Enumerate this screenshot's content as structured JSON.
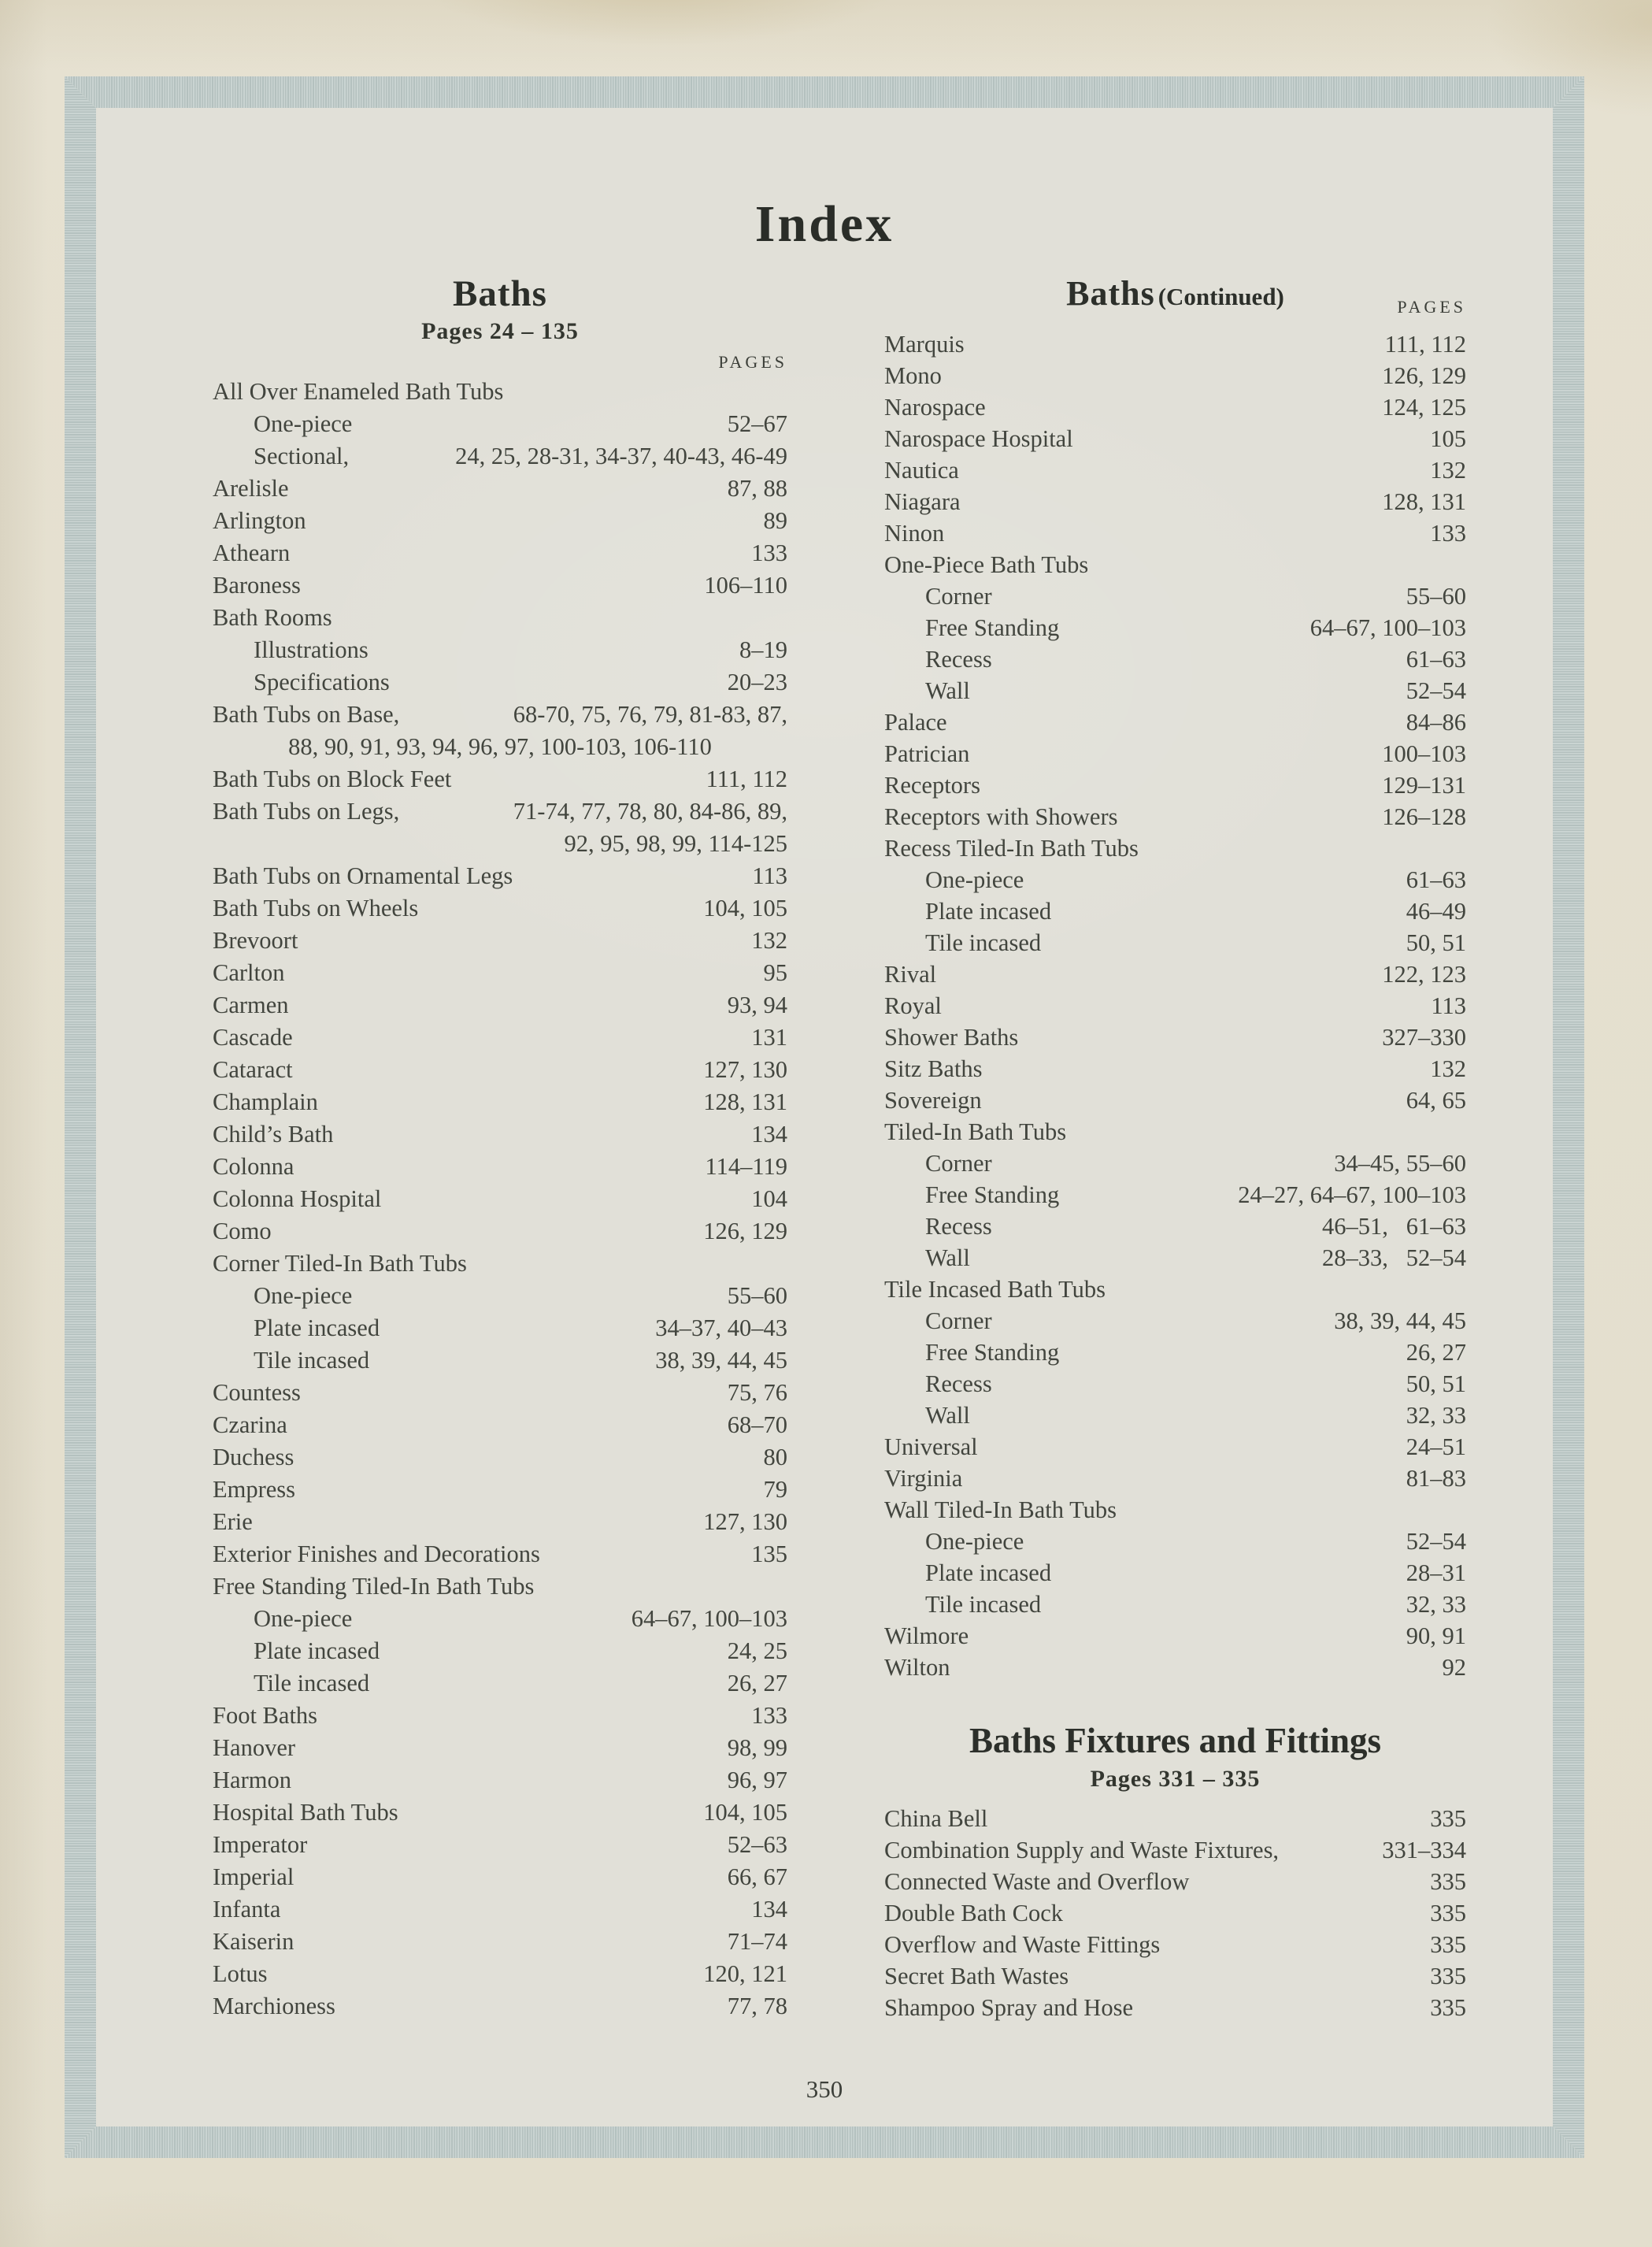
{
  "page": {
    "title": "Index",
    "page_number": "350"
  },
  "colors": {
    "paper_outer": "#e5e0d0",
    "paper_inner": "#e1e0d8",
    "border_band": "#bfcac8",
    "ink": "#3f423a"
  },
  "left_column": {
    "heading": "Baths",
    "subheading": "Pages 24 – 135",
    "pages_label": "PAGES",
    "entries": [
      {
        "t": "All Over Enameled Bath Tubs",
        "p": ""
      },
      {
        "t": "One-piece",
        "p": "52–67",
        "i": 1
      },
      {
        "t": "Sectional,",
        "p": "24, 25, 28-31, 34-37, 40-43, 46-49",
        "i": 1
      },
      {
        "t": "Arelisle",
        "p": "87, 88"
      },
      {
        "t": "Arlington",
        "p": "89"
      },
      {
        "t": "Athearn",
        "p": "133"
      },
      {
        "t": "Baroness",
        "p": "106–110"
      },
      {
        "t": "Bath Rooms",
        "p": ""
      },
      {
        "t": "Illustrations",
        "p": "8–19",
        "i": 1
      },
      {
        "t": "Specifications",
        "p": "20–23",
        "i": 1
      },
      {
        "t": "Bath Tubs on Base,",
        "p": "68-70, 75, 76, 79, 81-83, 87,",
        "l2": "88, 90, 91, 93, 94, 96, 97, 100-103, 106-110",
        "l2a": "center"
      },
      {
        "t": "Bath Tubs on Block Feet",
        "p": "111, 112"
      },
      {
        "t": "Bath Tubs on Legs,",
        "p": "71-74, 77, 78, 80, 84-86, 89,",
        "l2": "92, 95, 98, 99, 114-125",
        "l2a": "right"
      },
      {
        "t": "Bath Tubs on Ornamental Legs",
        "p": "113"
      },
      {
        "t": "Bath Tubs on Wheels",
        "p": "104, 105"
      },
      {
        "t": "Brevoort",
        "p": "132"
      },
      {
        "t": "Carlton",
        "p": "95"
      },
      {
        "t": "Carmen",
        "p": "93, 94"
      },
      {
        "t": "Cascade",
        "p": "131"
      },
      {
        "t": "Cataract",
        "p": "127, 130"
      },
      {
        "t": "Champlain",
        "p": "128, 131"
      },
      {
        "t": "Child’s Bath",
        "p": "134"
      },
      {
        "t": "Colonna",
        "p": "114–119"
      },
      {
        "t": "Colonna Hospital",
        "p": "104"
      },
      {
        "t": "Como",
        "p": "126, 129"
      },
      {
        "t": "Corner Tiled-In Bath Tubs",
        "p": ""
      },
      {
        "t": "One-piece",
        "p": "55–60",
        "i": 1
      },
      {
        "t": "Plate incased",
        "p": "34–37, 40–43",
        "i": 1
      },
      {
        "t": "Tile incased",
        "p": "38, 39, 44, 45",
        "i": 1
      },
      {
        "t": "Countess",
        "p": "75, 76"
      },
      {
        "t": "Czarina",
        "p": "68–70"
      },
      {
        "t": "Duchess",
        "p": "80"
      },
      {
        "t": "Empress",
        "p": "79"
      },
      {
        "t": "Erie",
        "p": "127, 130"
      },
      {
        "t": "Exterior Finishes and Decorations",
        "p": "135"
      },
      {
        "t": "Free Standing Tiled-In Bath Tubs",
        "p": ""
      },
      {
        "t": "One-piece",
        "p": "64–67, 100–103",
        "i": 1
      },
      {
        "t": "Plate incased",
        "p": "24, 25",
        "i": 1
      },
      {
        "t": "Tile incased",
        "p": "26, 27",
        "i": 1
      },
      {
        "t": "Foot Baths",
        "p": "133"
      },
      {
        "t": "Hanover",
        "p": "98, 99"
      },
      {
        "t": "Harmon",
        "p": "96, 97"
      },
      {
        "t": "Hospital Bath Tubs",
        "p": "104, 105"
      },
      {
        "t": "Imperator",
        "p": "52–63"
      },
      {
        "t": "Imperial",
        "p": "66, 67"
      },
      {
        "t": "Infanta",
        "p": "134"
      },
      {
        "t": "Kaiserin",
        "p": "71–74"
      },
      {
        "t": "Lotus",
        "p": "120, 121"
      },
      {
        "t": "Marchioness",
        "p": "77, 78"
      }
    ]
  },
  "right_column": {
    "heading": "Baths",
    "heading_suffix": "(Continued)",
    "pages_label": "PAGES",
    "entries": [
      {
        "t": "Marquis",
        "p": "111, 112"
      },
      {
        "t": "Mono",
        "p": "126, 129"
      },
      {
        "t": "Narospace",
        "p": "124, 125"
      },
      {
        "t": "Narospace Hospital",
        "p": "105"
      },
      {
        "t": "Nautica",
        "p": "132"
      },
      {
        "t": "Niagara",
        "p": "128, 131"
      },
      {
        "t": "Ninon",
        "p": "133"
      },
      {
        "t": "One-Piece Bath Tubs",
        "p": ""
      },
      {
        "t": "Corner",
        "p": "55–60",
        "i": 1
      },
      {
        "t": "Free Standing",
        "p": "64–67, 100–103",
        "i": 1
      },
      {
        "t": "Recess",
        "p": "61–63",
        "i": 1
      },
      {
        "t": "Wall",
        "p": "52–54",
        "i": 1
      },
      {
        "t": "Palace",
        "p": "84–86"
      },
      {
        "t": "Patrician",
        "p": "100–103"
      },
      {
        "t": "Receptors",
        "p": "129–131"
      },
      {
        "t": "Receptors with Showers",
        "p": "126–128"
      },
      {
        "t": "Recess Tiled-In Bath Tubs",
        "p": ""
      },
      {
        "t": "One-piece",
        "p": "61–63",
        "i": 1
      },
      {
        "t": "Plate incased",
        "p": "46–49",
        "i": 1
      },
      {
        "t": "Tile incased",
        "p": "50, 51",
        "i": 1
      },
      {
        "t": "Rival",
        "p": "122, 123"
      },
      {
        "t": "Royal",
        "p": "113"
      },
      {
        "t": "Shower Baths",
        "p": "327–330"
      },
      {
        "t": "Sitz Baths",
        "p": "132"
      },
      {
        "t": "Sovereign",
        "p": "64, 65"
      },
      {
        "t": "Tiled-In Bath Tubs",
        "p": ""
      },
      {
        "t": "Corner",
        "p": "34–45, 55–60",
        "i": 1
      },
      {
        "t": "Free Standing",
        "p": "24–27, 64–67, 100–103",
        "i": 1
      },
      {
        "t": "Recess",
        "p": "46–51,   61–63",
        "i": 1
      },
      {
        "t": "Wall",
        "p": "28–33,   52–54",
        "i": 1
      },
      {
        "t": "Tile Incased Bath Tubs",
        "p": ""
      },
      {
        "t": "Corner",
        "p": "38, 39, 44, 45",
        "i": 1
      },
      {
        "t": "Free Standing",
        "p": "26, 27",
        "i": 1
      },
      {
        "t": "Recess",
        "p": "50, 51",
        "i": 1
      },
      {
        "t": "Wall",
        "p": "32, 33",
        "i": 1
      },
      {
        "t": "Universal",
        "p": "24–51"
      },
      {
        "t": "Virginia",
        "p": "81–83"
      },
      {
        "t": "Wall Tiled-In Bath Tubs",
        "p": ""
      },
      {
        "t": "One-piece",
        "p": "52–54",
        "i": 1
      },
      {
        "t": "Plate incased",
        "p": "28–31",
        "i": 1
      },
      {
        "t": "Tile incased",
        "p": "32, 33",
        "i": 1
      },
      {
        "t": "Wilmore",
        "p": "90, 91"
      },
      {
        "t": "Wilton",
        "p": "92"
      }
    ]
  },
  "fixtures_section": {
    "heading": "Baths Fixtures and Fittings",
    "subheading": "Pages 331 – 335",
    "entries": [
      {
        "t": "China Bell",
        "p": "335"
      },
      {
        "t": "Combination Supply and Waste Fixtures,",
        "p": "331–334"
      },
      {
        "t": "Connected Waste and Overflow",
        "p": "335"
      },
      {
        "t": "Double Bath Cock",
        "p": "335"
      },
      {
        "t": "Overflow and Waste Fittings",
        "p": "335"
      },
      {
        "t": "Secret Bath Wastes",
        "p": "335"
      },
      {
        "t": "Shampoo Spray and Hose",
        "p": "335"
      }
    ]
  }
}
